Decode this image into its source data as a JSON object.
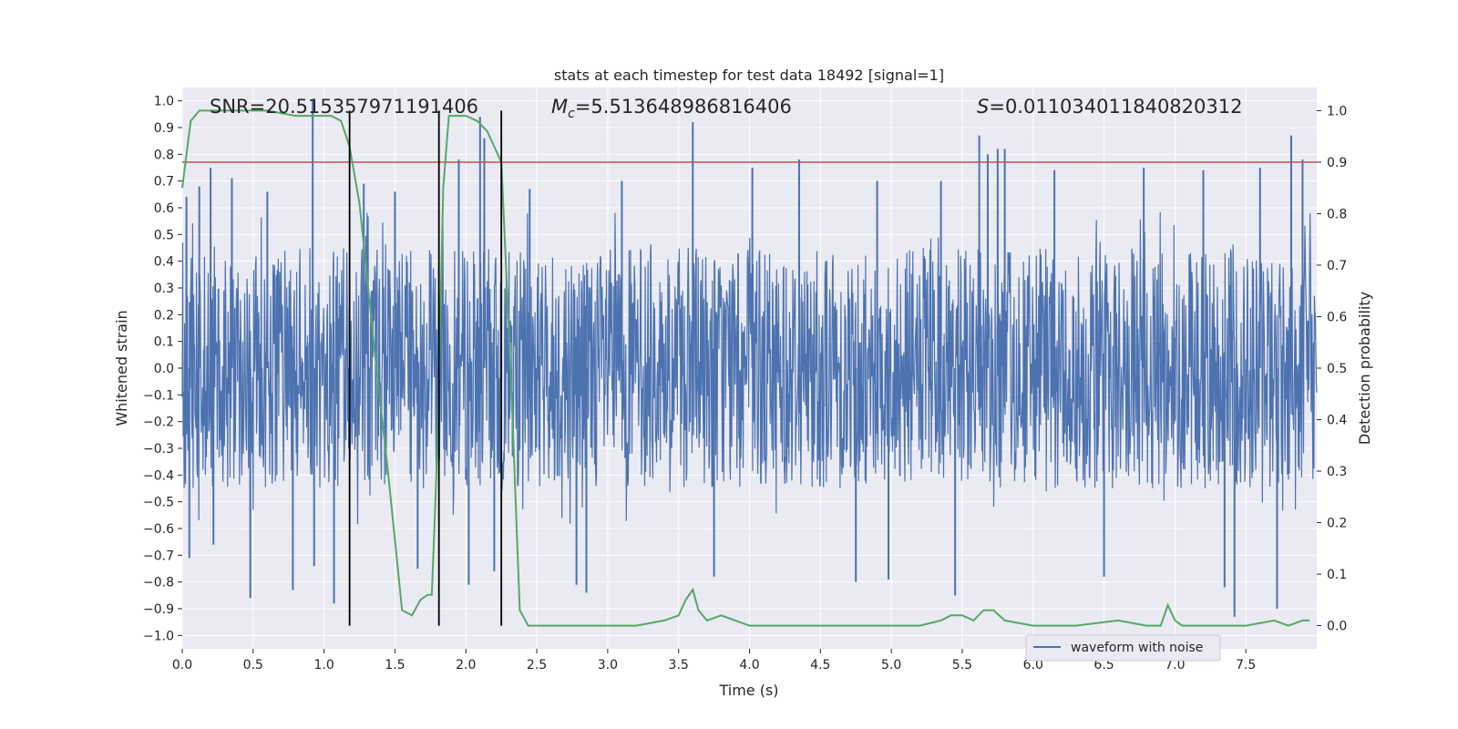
{
  "chart_data": {
    "type": "line",
    "title": "stats at each timestep for test data 18492 [signal=1]",
    "xlabel": "Time (s)",
    "ylabel": "Whitened strain",
    "y2label": "Detection probability",
    "xlim": [
      0.0,
      8.0
    ],
    "ylim": [
      -1.05,
      1.05
    ],
    "y2lim": [
      -0.045,
      1.045
    ],
    "xticks": [
      0.0,
      0.5,
      1.0,
      1.5,
      2.0,
      2.5,
      3.0,
      3.5,
      4.0,
      4.5,
      5.0,
      5.5,
      6.0,
      6.5,
      7.0,
      7.5
    ],
    "xtick_labels": [
      "0.0",
      "0.5",
      "1.0",
      "1.5",
      "2.0",
      "2.5",
      "3.0",
      "3.5",
      "4.0",
      "4.5",
      "5.0",
      "5.5",
      "6.0",
      "6.5",
      "7.0",
      "7.5"
    ],
    "yticks": [
      1.0,
      0.9,
      0.8,
      0.7,
      0.6,
      0.5,
      0.4,
      0.3,
      0.2,
      0.1,
      0.0,
      -0.1,
      -0.2,
      -0.3,
      -0.4,
      -0.5,
      -0.6,
      -0.7,
      -0.8,
      -0.9,
      -1.0
    ],
    "ytick_labels": [
      "1.0",
      "0.9",
      "0.8",
      "0.7",
      "0.6",
      "0.5",
      "0.4",
      "0.3",
      "0.2",
      "0.1",
      "0.0",
      "−0.1",
      "−0.2",
      "−0.3",
      "−0.4",
      "−0.5",
      "−0.6",
      "−0.7",
      "−0.8",
      "−0.9",
      "−1.0"
    ],
    "y2ticks": [
      1.0,
      0.9,
      0.8,
      0.7,
      0.6,
      0.5,
      0.4,
      0.3,
      0.2,
      0.1,
      0.0
    ],
    "y2tick_labels": [
      "1.0",
      "0.9",
      "0.8",
      "0.7",
      "0.6",
      "0.5",
      "0.4",
      "0.3",
      "0.2",
      "0.1",
      "0.0"
    ],
    "grid": true,
    "annotations": {
      "snr": "SNR=20.515357971191406",
      "mc_symbol": "M",
      "mc_sub": "c",
      "mc_value": "=5.513648986816406",
      "s_symbol": "S",
      "s_value": "=0.011034011840820312"
    },
    "threshold": {
      "name": "detection threshold",
      "value": 0.9,
      "axis": "right",
      "color": "#c44e52"
    },
    "markers": {
      "name": "event markers",
      "x": [
        1.18,
        1.81,
        2.25
      ],
      "y_range": [
        0.0,
        1.0
      ],
      "axis": "right",
      "color": "#000000"
    },
    "series": [
      {
        "name": "waveform with noise",
        "axis": "left",
        "color": "#4c72b0",
        "description": "dense whitened noise samples, typical range -0.45..0.45 with spikes",
        "core_range": [
          -0.45,
          0.45
        ],
        "spikes": [
          {
            "x": 0.03,
            "y": 0.64
          },
          {
            "x": 0.05,
            "y": -0.71
          },
          {
            "x": 0.12,
            "y": 0.68
          },
          {
            "x": 0.2,
            "y": 0.75
          },
          {
            "x": 0.22,
            "y": -0.66
          },
          {
            "x": 0.35,
            "y": 0.71
          },
          {
            "x": 0.48,
            "y": -0.86
          },
          {
            "x": 0.6,
            "y": 0.66
          },
          {
            "x": 0.78,
            "y": -0.83
          },
          {
            "x": 0.92,
            "y": 1.0
          },
          {
            "x": 0.93,
            "y": -0.74
          },
          {
            "x": 1.07,
            "y": -0.88
          },
          {
            "x": 1.28,
            "y": 0.69
          },
          {
            "x": 1.5,
            "y": 0.66
          },
          {
            "x": 1.66,
            "y": -0.75
          },
          {
            "x": 1.95,
            "y": 0.78
          },
          {
            "x": 2.02,
            "y": -0.81
          },
          {
            "x": 2.1,
            "y": 0.94
          },
          {
            "x": 2.13,
            "y": 0.86
          },
          {
            "x": 2.2,
            "y": -0.76
          },
          {
            "x": 2.45,
            "y": 0.67
          },
          {
            "x": 2.78,
            "y": -0.81
          },
          {
            "x": 2.85,
            "y": -0.84
          },
          {
            "x": 3.1,
            "y": 0.7
          },
          {
            "x": 3.6,
            "y": 0.92
          },
          {
            "x": 3.75,
            "y": -0.78
          },
          {
            "x": 4.02,
            "y": 0.75
          },
          {
            "x": 4.35,
            "y": 0.78
          },
          {
            "x": 4.75,
            "y": -0.8
          },
          {
            "x": 4.9,
            "y": 0.7
          },
          {
            "x": 4.98,
            "y": -0.79
          },
          {
            "x": 5.35,
            "y": 0.7
          },
          {
            "x": 5.45,
            "y": -0.85
          },
          {
            "x": 5.62,
            "y": 0.87
          },
          {
            "x": 5.68,
            "y": 0.8
          },
          {
            "x": 5.75,
            "y": 0.82
          },
          {
            "x": 5.8,
            "y": 0.82
          },
          {
            "x": 6.15,
            "y": 0.74
          },
          {
            "x": 6.5,
            "y": -0.78
          },
          {
            "x": 6.78,
            "y": 0.75
          },
          {
            "x": 7.2,
            "y": 0.74
          },
          {
            "x": 7.35,
            "y": -0.82
          },
          {
            "x": 7.42,
            "y": -0.93
          },
          {
            "x": 7.6,
            "y": 0.75
          },
          {
            "x": 7.72,
            "y": -0.9
          },
          {
            "x": 7.82,
            "y": 0.87
          },
          {
            "x": 7.9,
            "y": 0.78
          }
        ]
      },
      {
        "name": "detection probability",
        "axis": "right",
        "color": "#55a868",
        "x": [
          0.0,
          0.06,
          0.12,
          0.2,
          0.4,
          0.6,
          0.8,
          0.95,
          1.05,
          1.12,
          1.18,
          1.25,
          1.35,
          1.45,
          1.55,
          1.62,
          1.68,
          1.73,
          1.76,
          1.8,
          1.84,
          1.88,
          1.93,
          2.0,
          2.08,
          2.15,
          2.2,
          2.25,
          2.32,
          2.38,
          2.44,
          2.6,
          2.8,
          3.0,
          3.2,
          3.4,
          3.5,
          3.55,
          3.6,
          3.64,
          3.7,
          3.8,
          3.9,
          4.0,
          4.5,
          5.0,
          5.2,
          5.35,
          5.42,
          5.5,
          5.58,
          5.65,
          5.72,
          5.8,
          6.0,
          6.3,
          6.6,
          6.8,
          6.9,
          6.95,
          7.0,
          7.05,
          7.2,
          7.5,
          7.7,
          7.8,
          7.9,
          7.95
        ],
        "values": [
          0.85,
          0.98,
          1.0,
          1.0,
          1.0,
          1.0,
          0.99,
          0.99,
          0.99,
          0.98,
          0.93,
          0.82,
          0.55,
          0.3,
          0.03,
          0.02,
          0.05,
          0.06,
          0.06,
          0.35,
          0.85,
          0.99,
          0.99,
          0.99,
          0.98,
          0.96,
          0.93,
          0.9,
          0.47,
          0.03,
          0.0,
          0.0,
          0.0,
          0.0,
          0.0,
          0.01,
          0.02,
          0.05,
          0.07,
          0.03,
          0.01,
          0.02,
          0.01,
          0.0,
          0.0,
          0.0,
          0.0,
          0.01,
          0.02,
          0.02,
          0.01,
          0.03,
          0.03,
          0.01,
          0.0,
          0.0,
          0.01,
          0.0,
          0.0,
          0.04,
          0.01,
          0.0,
          0.0,
          0.0,
          0.01,
          0.0,
          0.01,
          0.01
        ]
      }
    ],
    "legend": {
      "placement": "lower-right",
      "entries": [
        "waveform with noise"
      ]
    }
  }
}
